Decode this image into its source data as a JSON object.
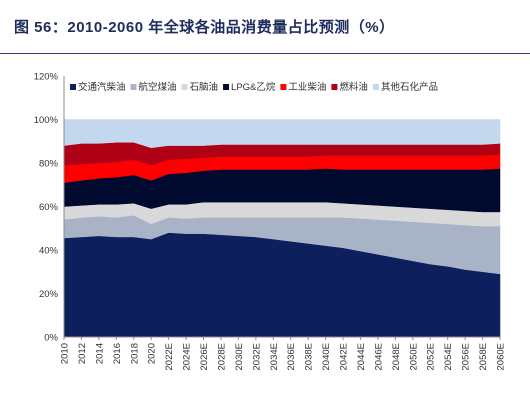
{
  "figure": {
    "title": "图 56：2010-2060 年全球各油品消费量占比预测（%）"
  },
  "chart_data": {
    "type": "area",
    "stacked": true,
    "x": [
      "2010",
      "2012",
      "2014",
      "2016",
      "2018",
      "2020",
      "2022E",
      "2024E",
      "2026E",
      "2028E",
      "2030E",
      "2032E",
      "2034E",
      "2036E",
      "2038E",
      "2040E",
      "2042E",
      "2044E",
      "2046E",
      "2048E",
      "2050E",
      "2052E",
      "2054E",
      "2056E",
      "2058E",
      "2060E"
    ],
    "ylim": [
      0,
      120
    ],
    "yticks": [
      "0%",
      "20%",
      "40%",
      "60%",
      "80%",
      "100%",
      "120%"
    ],
    "grid": false,
    "legend_position": "top",
    "series": [
      {
        "name": "交通汽柴油",
        "color": "#0d1f5c",
        "values": [
          45.5,
          46,
          46.5,
          46,
          46,
          45,
          48,
          47.5,
          47.5,
          47,
          46.5,
          46,
          45,
          44,
          43,
          42,
          41,
          39.5,
          38,
          36.5,
          35,
          33.5,
          32.5,
          31,
          30,
          29
        ]
      },
      {
        "name": "航空煤油",
        "color": "#a8b3c8",
        "values": [
          8.5,
          9,
          9,
          9,
          10,
          7,
          7,
          7,
          7.5,
          8,
          8.5,
          9,
          10,
          11,
          12,
          13,
          14,
          15,
          16,
          17,
          18,
          19,
          19.5,
          20.5,
          21,
          22
        ]
      },
      {
        "name": "石脑油",
        "color": "#d9d9d9",
        "values": [
          6,
          5.5,
          5.5,
          6,
          5.5,
          7,
          6,
          6.5,
          7,
          7,
          7,
          7,
          7,
          7,
          7,
          7,
          6.5,
          6.5,
          6.5,
          6.5,
          6.5,
          6.5,
          6.5,
          6.5,
          6.5,
          6.5
        ]
      },
      {
        "name": "LPG&乙烷",
        "color": "#000a2e",
        "values": [
          11,
          11.5,
          12,
          12.5,
          13,
          13,
          14,
          14.5,
          14.5,
          15,
          15,
          15,
          15,
          15,
          15,
          15.5,
          15.5,
          16,
          16.5,
          17,
          17.5,
          18,
          18.5,
          19,
          19.5,
          20
        ]
      },
      {
        "name": "工业柴油",
        "color": "#ff0000",
        "values": [
          8,
          7.5,
          7,
          7,
          7,
          7,
          6.5,
          6.5,
          6,
          6,
          6,
          6,
          6,
          6,
          6,
          6,
          6.5,
          6.5,
          6.5,
          6.5,
          6.5,
          6.5,
          6.5,
          6.5,
          6.5,
          6.5
        ]
      },
      {
        "name": "燃料油",
        "color": "#b00016",
        "values": [
          9,
          9.5,
          9,
          9,
          8,
          8,
          6.5,
          6,
          5.5,
          5.5,
          5.5,
          5.5,
          5.5,
          5.5,
          5.5,
          5,
          5,
          5,
          5,
          5,
          5,
          5,
          5,
          5,
          5,
          5
        ]
      },
      {
        "name": "其他石化产品",
        "color": "#c3d7ee",
        "values": [
          12,
          11,
          11,
          10.5,
          10.5,
          13,
          12,
          12,
          12,
          11.5,
          11.5,
          11.5,
          11.5,
          11.5,
          11.5,
          11.5,
          11.5,
          11.5,
          11.5,
          11.5,
          11.5,
          11.5,
          11.5,
          11.5,
          11.5,
          11
        ]
      }
    ]
  }
}
